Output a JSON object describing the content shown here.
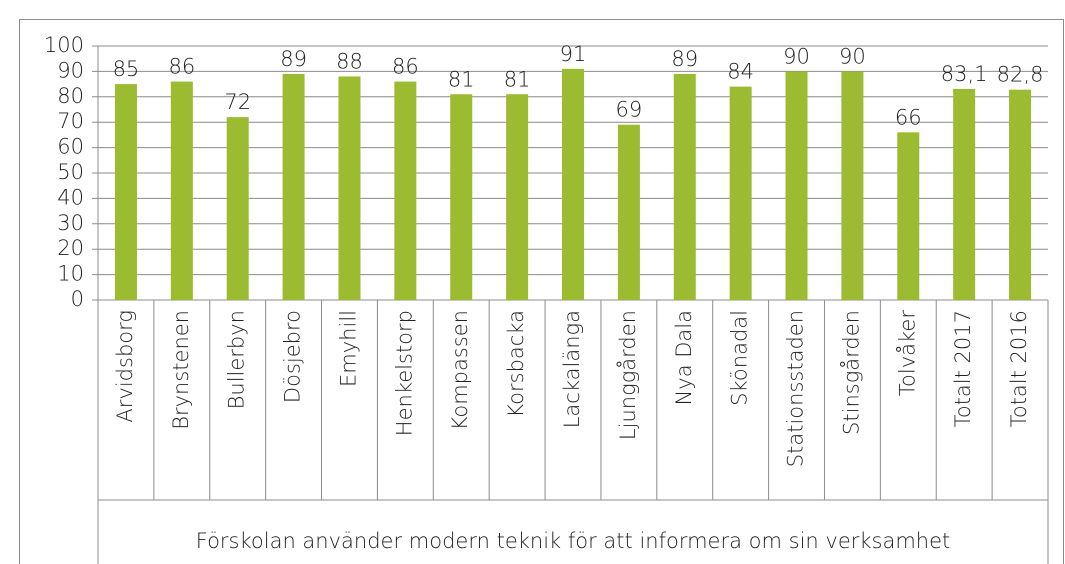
{
  "chart_data": {
    "type": "bar",
    "categories": [
      "Arvidsborg",
      "Brynstenen",
      "Bullerbyn",
      "Dösjebro",
      "Emyhill",
      "Henkelstorp",
      "Kompassen",
      "Korsbacka",
      "Lackalänga",
      "Ljunggården",
      "Nya Dala",
      "Skönadal",
      "Stationsstaden",
      "Stinsgården",
      "Tolvåker",
      "Totalt 2017",
      "Totalt 2016"
    ],
    "values": [
      85,
      86,
      72,
      89,
      88,
      86,
      81,
      81,
      91,
      69,
      89,
      84,
      90,
      90,
      66,
      83.1,
      82.8
    ],
    "value_labels": [
      "85",
      "86",
      "72",
      "89",
      "88",
      "86",
      "81",
      "81",
      "91",
      "69",
      "89",
      "84",
      "90",
      "90",
      "66",
      "83,1",
      "82,8"
    ],
    "xlabel": "Förskolan använder modern teknik för att informera om sin verksamhet",
    "color": "#9bbb30",
    "ylim": [
      0,
      100
    ],
    "yticks": [
      0,
      10,
      20,
      30,
      40,
      50,
      60,
      70,
      80,
      90,
      100
    ],
    "grid": true
  }
}
